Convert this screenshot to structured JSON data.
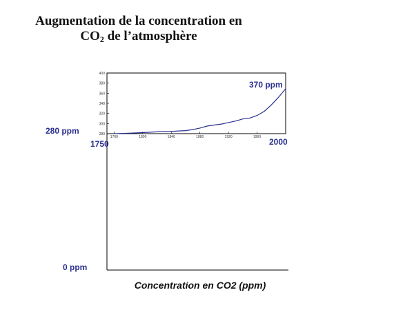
{
  "title": {
    "line1": "Augmentation de la concentration en",
    "line2_prefix": "CO",
    "line2_sub": "2",
    "line2_suffix": " de l’atmosphère"
  },
  "annotations": {
    "ppm_280": "280 ppm",
    "year_start": "1750",
    "ppm_370": "370 ppm",
    "year_end": "2000",
    "ppm_0": "0 ppm"
  },
  "axis_title": "Concentration en CO2 (ppm)",
  "colors": {
    "series": "#2a2f8f",
    "text_annotation": "#2a2f8f",
    "axis": "#000000"
  },
  "chart_data": {
    "type": "line",
    "xlim": [
      1750,
      2000
    ],
    "ylim": [
      280,
      400
    ],
    "x_ticks": [
      "1760",
      "1800",
      "1840",
      "1880",
      "1920",
      "1960"
    ],
    "y_ticks": [
      "280",
      "300",
      "320",
      "340",
      "360",
      "380",
      "400"
    ],
    "grid": false,
    "series": [
      {
        "x": [
          1760,
          1780,
          1800,
          1820,
          1840,
          1860,
          1870,
          1880,
          1890,
          1900,
          1910,
          1920,
          1930,
          1940,
          1950,
          1960,
          1970,
          1980,
          1990,
          2000
        ],
        "y": [
          280,
          281,
          282,
          283.5,
          284.5,
          286,
          288,
          291,
          295,
          297,
          299,
          302,
          305,
          309,
          311,
          316,
          324,
          337,
          352,
          369
        ]
      }
    ]
  }
}
